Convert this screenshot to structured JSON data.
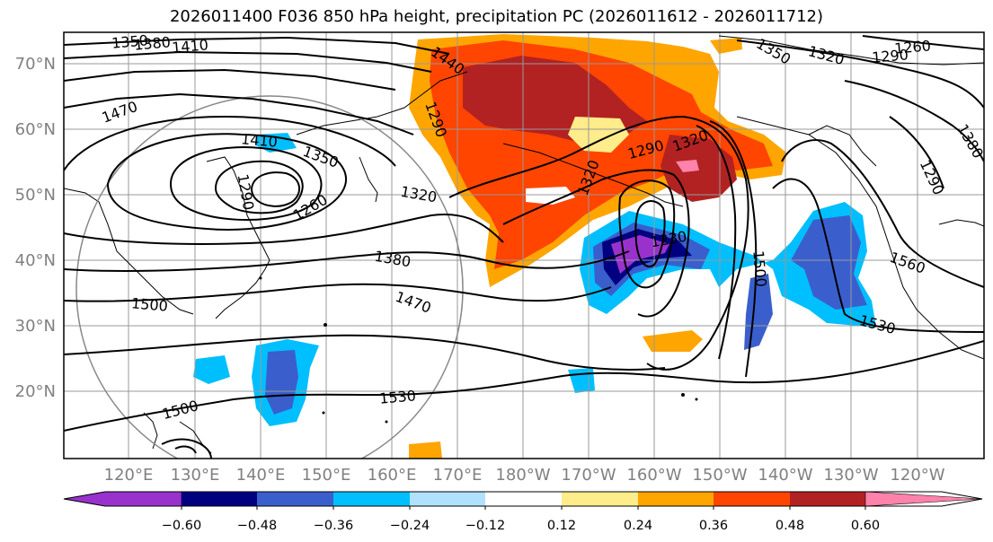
{
  "title": "2026011400 F036 850 hPa height, precipitation PC (2026011612 - 2026011712)",
  "lat_labels": [
    "70°N",
    "60°N",
    "50°N",
    "40°N",
    "30°N",
    "20°N"
  ],
  "lon_labels": [
    "120°E",
    "130°E",
    "140°E",
    "150°E",
    "160°E",
    "170°E",
    "180°W",
    "170°W",
    "160°W",
    "150°W",
    "140°W",
    "130°W",
    "120°W"
  ],
  "contour_labels": [
    "1350",
    "1380",
    "1410",
    "1440",
    "1470",
    "1410",
    "1350",
    "1290",
    "1260",
    "1320",
    "1380",
    "1470",
    "1500",
    "1290",
    "1320",
    "1290",
    "1230",
    "1500",
    "1560",
    "1530",
    "1530",
    "1500",
    "1350",
    "1320",
    "1290",
    "1260",
    "1380",
    "1290",
    "1320"
  ],
  "colorbar": {
    "colors": [
      "#9932cc",
      "#000080",
      "#3a5fcd",
      "#00bfff",
      "#b0e2ff",
      "#ffffff",
      "#ffec8b",
      "#ffa500",
      "#ff4500",
      "#b22222",
      "#ff82ab"
    ],
    "ticks": [
      "−0.60",
      "−0.48",
      "−0.36",
      "−0.24",
      "−0.12",
      "0.12",
      "0.24",
      "0.36",
      "0.48",
      "0.60"
    ]
  }
}
